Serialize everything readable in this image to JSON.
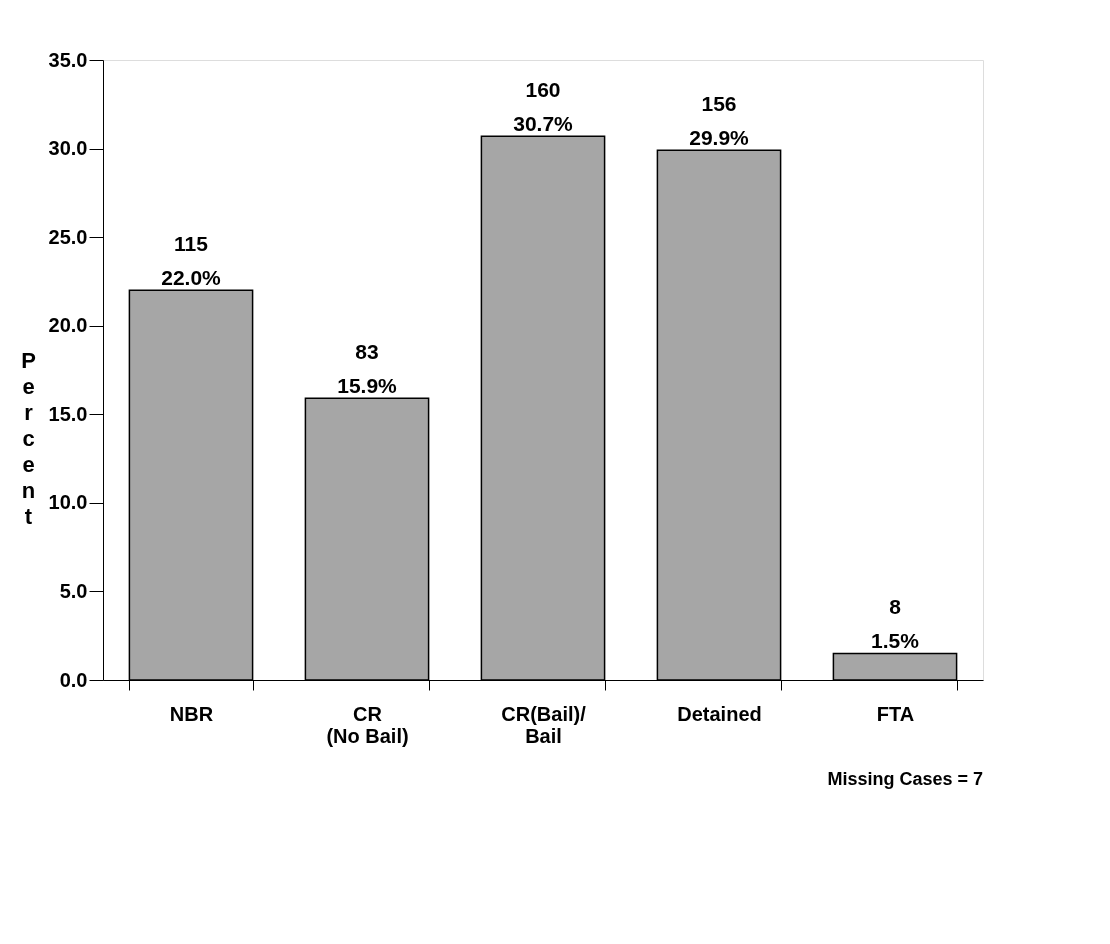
{
  "chart_data": {
    "type": "bar",
    "ylabel": "Percent",
    "categories": [
      "NBR",
      "CR\n(No Bail)",
      "CR(Bail)/\nBail",
      "Detained",
      "FTA"
    ],
    "values": [
      22.0,
      15.9,
      30.7,
      29.9,
      1.5
    ],
    "value_labels": [
      "115\n22.0%",
      "83\n15.9%",
      "160\n30.7%",
      "156\n29.9%",
      "8\n1.5%"
    ],
    "color": "#a6a6a6",
    "ylim": [
      0,
      35
    ],
    "yticks": [
      {
        "value": 0,
        "label": "0.0"
      },
      {
        "value": 5,
        "label": "5.0"
      },
      {
        "value": 10,
        "label": "10.0"
      },
      {
        "value": 15,
        "label": "15.0"
      },
      {
        "value": 20,
        "label": "20.0"
      },
      {
        "value": 25,
        "label": "25.0"
      },
      {
        "value": 30,
        "label": "30.0"
      },
      {
        "value": 35,
        "label": "35.0"
      }
    ],
    "grid": false,
    "annotations": [
      "Missing Cases = 7"
    ]
  }
}
